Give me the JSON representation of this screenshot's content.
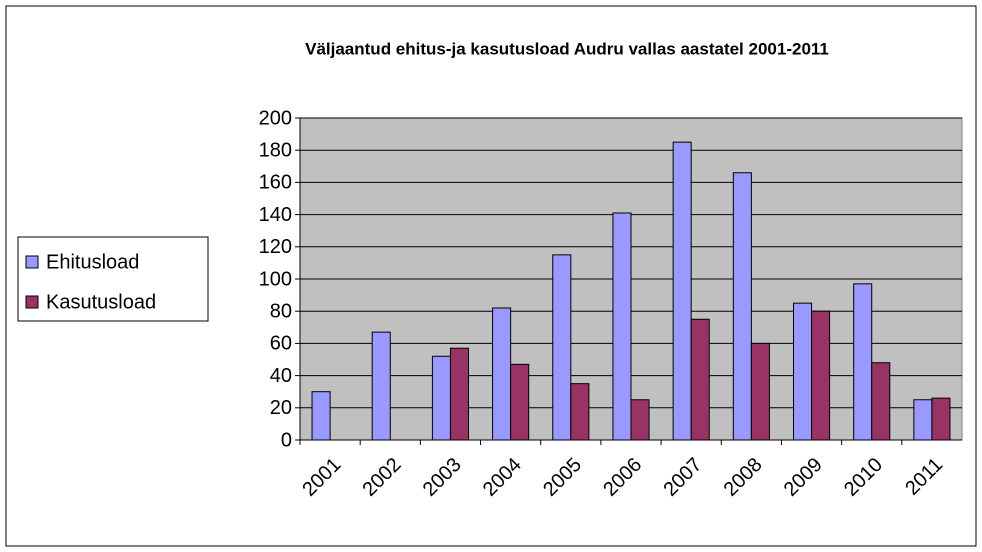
{
  "chart_data": {
    "type": "bar",
    "title": "Väljaantud ehitus-ja kasutusload Audru vallas aastatel 2001-2011",
    "categories": [
      "2001",
      "2002",
      "2003",
      "2004",
      "2005",
      "2006",
      "2007",
      "2008",
      "2009",
      "2010",
      "2011"
    ],
    "series": [
      {
        "name": "Ehitusload",
        "color": "#9999ff",
        "values": [
          30,
          67,
          52,
          82,
          115,
          141,
          185,
          166,
          85,
          97,
          25
        ]
      },
      {
        "name": "Kasutusload",
        "color": "#993366",
        "values": [
          0,
          0,
          57,
          47,
          35,
          25,
          75,
          60,
          80,
          48,
          26
        ]
      }
    ],
    "ylim": [
      0,
      200
    ],
    "yticks": [
      0,
      20,
      40,
      60,
      80,
      100,
      120,
      140,
      160,
      180,
      200
    ],
    "grid": true,
    "legend": "left",
    "plot_background": "#c0c0c0"
  }
}
